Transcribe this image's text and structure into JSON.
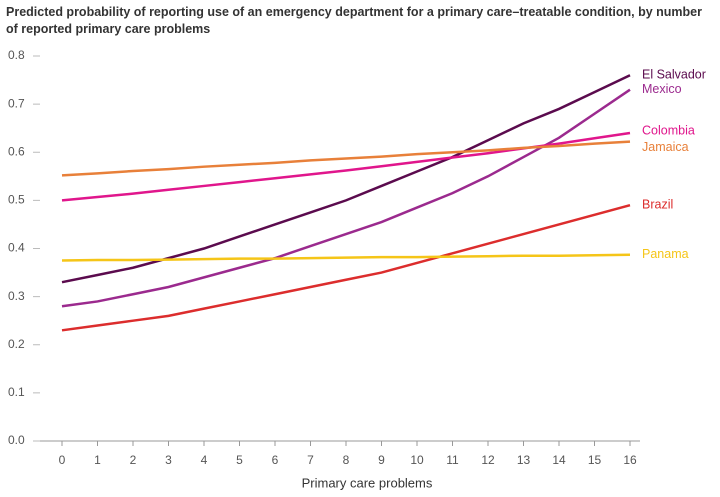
{
  "chart_data": {
    "type": "line",
    "title": "Predicted probability of reporting use of an emergency department for a primary care–treatable condition, by number of reported primary care problems",
    "x_label": "Primary care problems",
    "x": [
      0,
      1,
      2,
      3,
      4,
      5,
      6,
      7,
      8,
      9,
      10,
      11,
      12,
      13,
      14,
      15,
      16
    ],
    "xlim": [
      0,
      16
    ],
    "xticks": [
      0,
      1,
      2,
      3,
      4,
      5,
      6,
      7,
      8,
      9,
      10,
      11,
      12,
      13,
      14,
      15,
      16
    ],
    "ylim": [
      0,
      0.8
    ],
    "yticks": [
      {
        "value": 0,
        "label": "0.0"
      },
      0.1,
      0.2,
      0.3,
      0.4,
      0.5,
      0.6,
      0.7,
      0.8
    ],
    "grid": false,
    "series": [
      {
        "name": "El Salvador",
        "color": "#5b0b4e",
        "values": [
          0.33,
          0.345,
          0.36,
          0.38,
          0.4,
          0.425,
          0.45,
          0.475,
          0.5,
          0.53,
          0.56,
          0.59,
          0.625,
          0.66,
          0.69,
          0.725,
          0.76
        ]
      },
      {
        "name": "Mexico",
        "color": "#9b2a8e",
        "values": [
          0.28,
          0.29,
          0.305,
          0.32,
          0.34,
          0.36,
          0.38,
          0.405,
          0.43,
          0.455,
          0.485,
          0.515,
          0.55,
          0.59,
          0.63,
          0.68,
          0.73
        ]
      },
      {
        "name": "Colombia",
        "color": "#e0168c",
        "values": [
          0.5,
          0.507,
          0.514,
          0.522,
          0.53,
          0.538,
          0.546,
          0.554,
          0.562,
          0.571,
          0.58,
          0.589,
          0.598,
          0.608,
          0.618,
          0.629,
          0.64
        ]
      },
      {
        "name": "Jamaica",
        "color": "#e8803a",
        "values": [
          0.552,
          0.556,
          0.561,
          0.565,
          0.57,
          0.574,
          0.578,
          0.583,
          0.587,
          0.591,
          0.596,
          0.6,
          0.604,
          0.609,
          0.613,
          0.618,
          0.622
        ]
      },
      {
        "name": "Brazil",
        "color": "#dc2d2d",
        "values": [
          0.23,
          0.24,
          0.25,
          0.26,
          0.275,
          0.29,
          0.305,
          0.32,
          0.335,
          0.35,
          0.37,
          0.39,
          0.41,
          0.43,
          0.45,
          0.47,
          0.49
        ]
      },
      {
        "name": "Panama",
        "color": "#f5c518",
        "values": [
          0.375,
          0.376,
          0.376,
          0.377,
          0.378,
          0.379,
          0.379,
          0.38,
          0.381,
          0.382,
          0.382,
          0.383,
          0.384,
          0.385,
          0.385,
          0.386,
          0.387
        ]
      }
    ]
  }
}
